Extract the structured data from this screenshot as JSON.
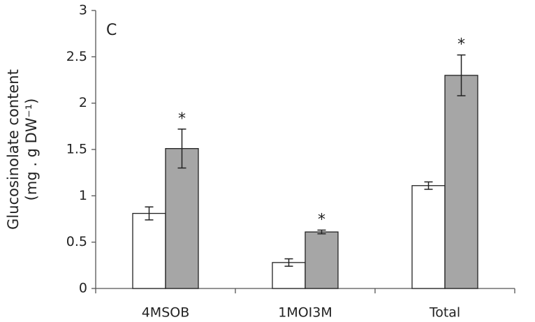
{
  "chart_data": {
    "type": "bar",
    "panel_label": "C",
    "y_label": [
      "Glucosinolate content",
      "(mg . g DW⁻¹)"
    ],
    "categories": [
      "4MSOB",
      "1MOI3M",
      "Total"
    ],
    "series": [
      {
        "color": "#ffffff",
        "values": [
          0.81,
          0.28,
          1.11
        ],
        "errors": [
          0.07,
          0.04,
          0.04
        ]
      },
      {
        "color": "#a6a6a6",
        "values": [
          1.51,
          0.61,
          2.3
        ],
        "errors": [
          0.21,
          0.02,
          0.22
        ],
        "significance": [
          "*",
          "*",
          "*"
        ]
      }
    ],
    "ylim": [
      0,
      3
    ],
    "yticks": [
      0,
      0.5,
      1,
      1.5,
      2,
      2.5,
      3
    ],
    "grid": false
  }
}
